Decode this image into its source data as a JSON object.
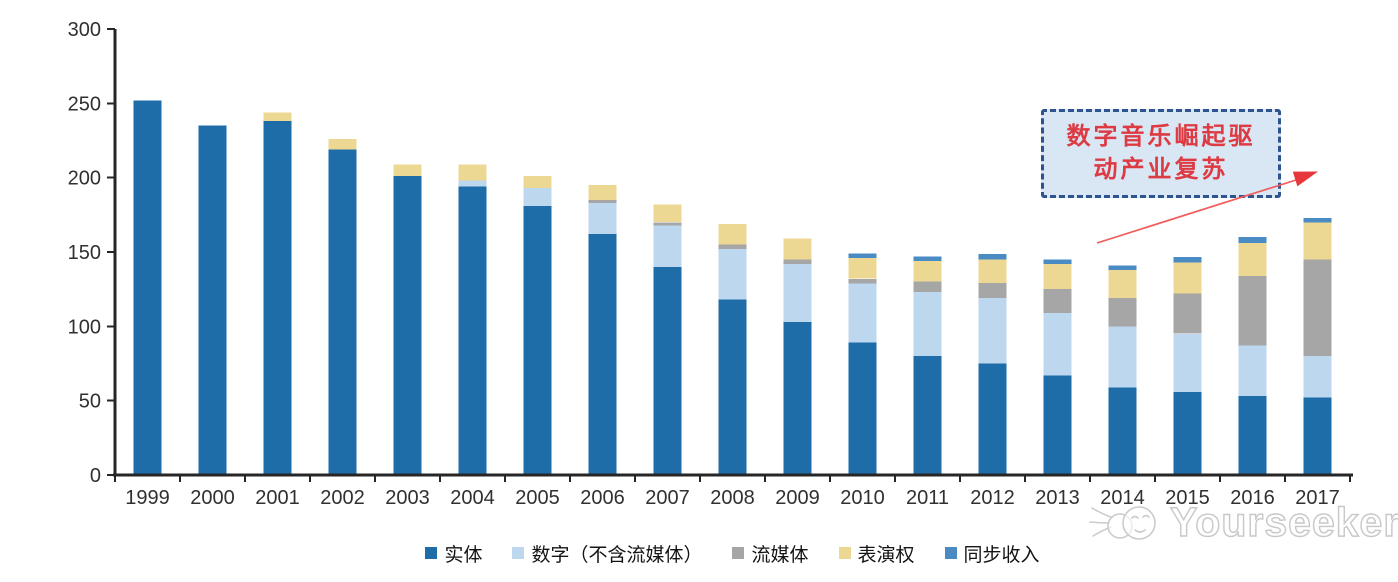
{
  "chart_data": {
    "type": "bar",
    "variant": "stacked",
    "categories": [
      "1999",
      "2000",
      "2001",
      "2002",
      "2003",
      "2004",
      "2005",
      "2006",
      "2007",
      "2008",
      "2009",
      "2010",
      "2011",
      "2012",
      "2013",
      "2014",
      "2015",
      "2016",
      "2017"
    ],
    "series": [
      {
        "name": "实体",
        "color": "#1E6CA8",
        "values": [
          252,
          235,
          238,
          219,
          201,
          194,
          181,
          162,
          140,
          118,
          103,
          89,
          80,
          75,
          67,
          59,
          56,
          53,
          52
        ]
      },
      {
        "name": "数字（不含流媒体）",
        "color": "#BDD7EE",
        "values": [
          0,
          0,
          0,
          0,
          0,
          4,
          12,
          21,
          28,
          34,
          39,
          40,
          43,
          44,
          42,
          41,
          39,
          34,
          28
        ]
      },
      {
        "name": "流媒体",
        "color": "#A6A6A6",
        "values": [
          0,
          0,
          0,
          0,
          0,
          0,
          0,
          2,
          2,
          3,
          3,
          3,
          7,
          10,
          16,
          19,
          27,
          47,
          65
        ]
      },
      {
        "name": "表演权",
        "color": "#ECD893",
        "values": [
          0,
          0,
          6,
          7,
          8,
          11,
          8,
          10,
          12,
          14,
          14,
          14,
          14,
          16,
          17,
          19,
          21,
          22,
          25
        ]
      },
      {
        "name": "同步收入",
        "color": "#4A8BC4",
        "values": [
          0,
          0,
          0,
          0,
          0,
          0,
          0,
          0,
          0,
          0,
          0,
          3,
          3,
          3.5,
          3,
          3,
          3.5,
          4,
          3
        ]
      }
    ],
    "title": "",
    "xlabel": "",
    "ylabel": "",
    "ylim": [
      0,
      300
    ],
    "yticks": [
      0,
      50,
      100,
      150,
      200,
      250,
      300
    ],
    "grid": false,
    "legend_position": "bottom",
    "axis_color": "#262626"
  },
  "annotation": {
    "line1": "数字音乐崛起驱",
    "line2": "动产业复苏",
    "text_color": "#DD3A42",
    "border_color": "#2E5490",
    "fill_color": "#D9E6F4",
    "arrow_color": "#E8373C"
  },
  "watermark": {
    "text": "Yourseeker"
  }
}
